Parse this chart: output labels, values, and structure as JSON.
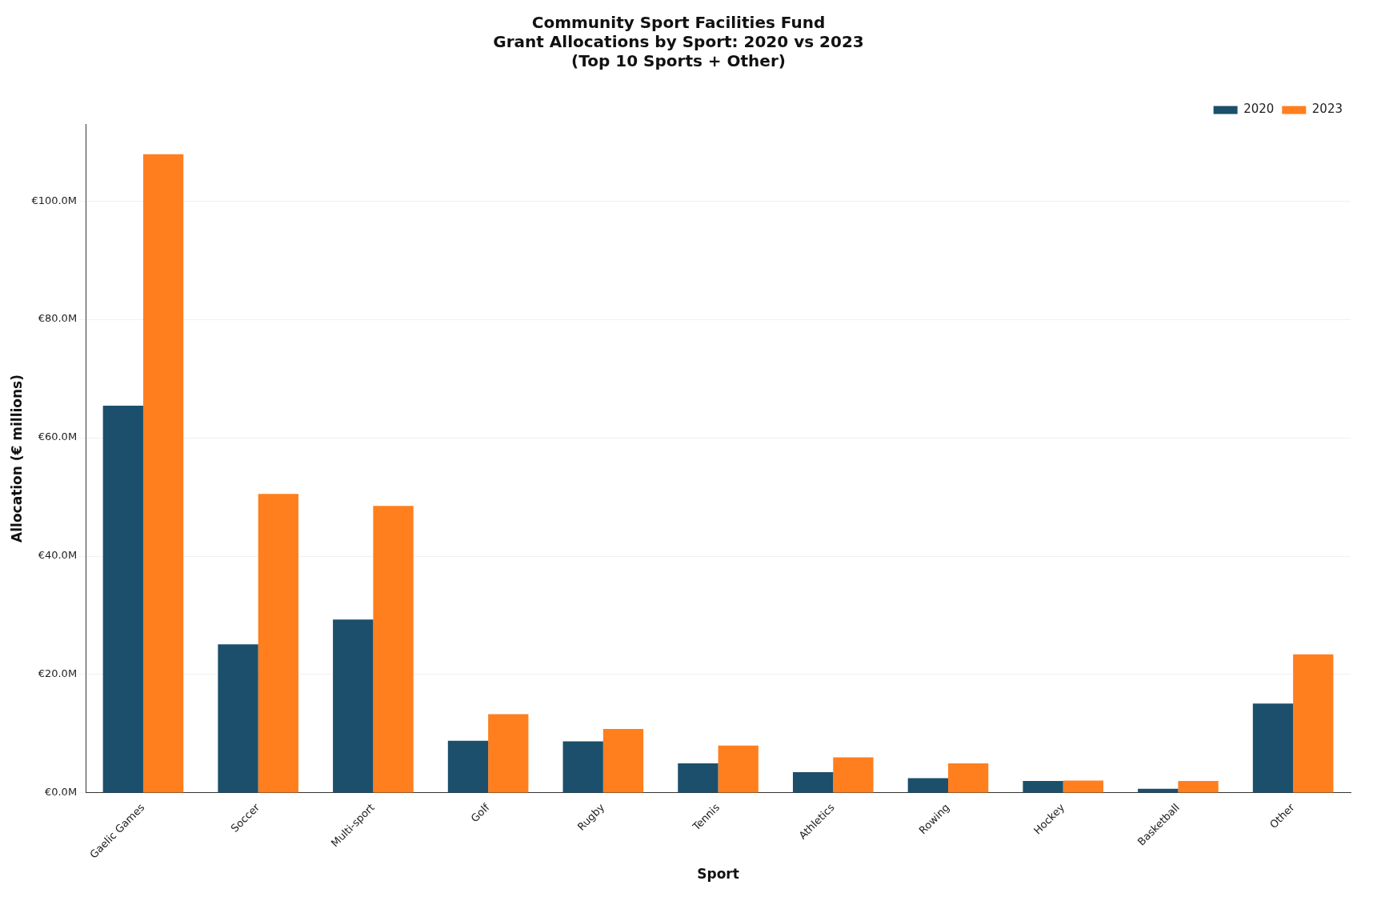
{
  "chart_data": {
    "type": "bar",
    "title": "Community Sport Facilities Fund\nGrant Allocations by Sport: 2020 vs 2023\n(Top 10 Sports + Other)",
    "xlabel": "Sport",
    "ylabel": "Allocation (€ millions)",
    "categories": [
      "Gaelic Games",
      "Soccer",
      "Multi-sport",
      "Golf",
      "Rugby",
      "Tennis",
      "Athletics",
      "Rowing",
      "Hockey",
      "Basketball",
      "Other"
    ],
    "series": [
      {
        "name": "2020",
        "color": "#1b4f6b",
        "values": [
          65.4,
          25.1,
          29.3,
          8.8,
          8.7,
          5.0,
          3.5,
          2.5,
          2.0,
          0.7,
          15.1
        ]
      },
      {
        "name": "2023",
        "color": "#ff7f1e",
        "values": [
          107.9,
          50.5,
          48.5,
          13.3,
          10.8,
          8.0,
          6.0,
          5.0,
          2.1,
          2.0,
          23.4
        ]
      }
    ],
    "ylim": [
      0,
      113
    ],
    "yticks": [
      {
        "value": 0,
        "label": "€0.0M"
      },
      {
        "value": 20,
        "label": "€20.0M"
      },
      {
        "value": 40,
        "label": "€40.0M"
      },
      {
        "value": 60,
        "label": "€60.0M"
      },
      {
        "value": 80,
        "label": "€80.0M"
      },
      {
        "value": 100,
        "label": "€100.0M"
      }
    ],
    "grid": "y",
    "legend": "top right"
  }
}
